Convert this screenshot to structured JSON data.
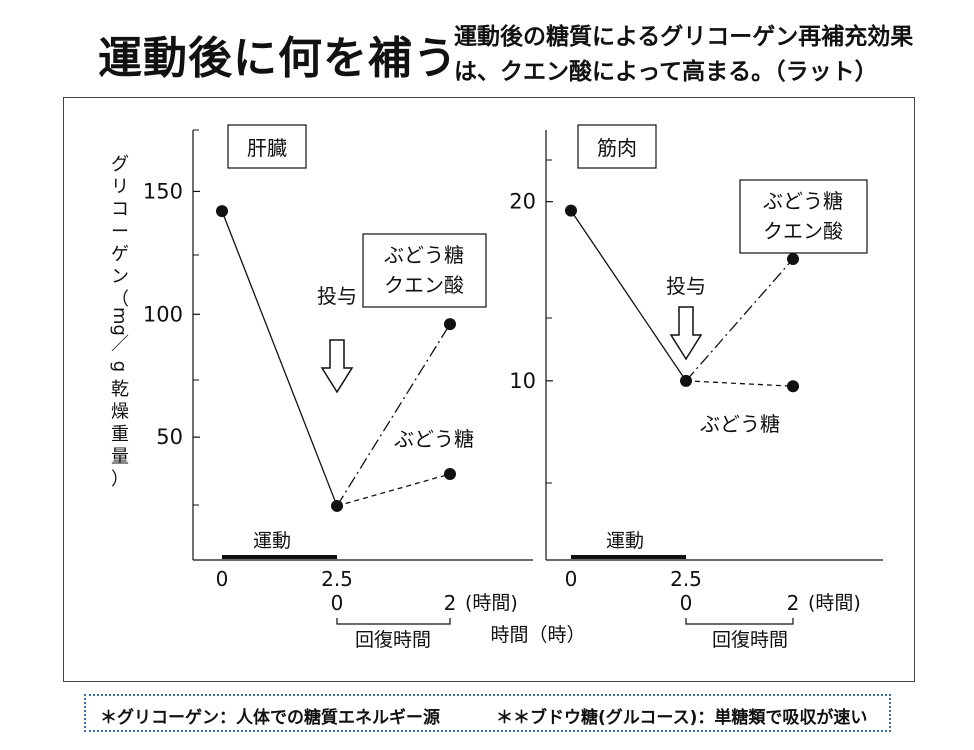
{
  "title": "運動後に何を補う",
  "subtitle": [
    "運動後の糖質によるグリコーゲン再補充効果",
    "は、クエン酸によって高まる。（ラット）"
  ],
  "colors": {
    "line": "#111111",
    "footnote_border": "#3b6ea8"
  },
  "chart_data": [
    {
      "type": "line",
      "panel_label": "肝臓",
      "ylabel": [
        "グ",
        "リ",
        "コ",
        "ー",
        "ゲ",
        "ン",
        "（",
        "mg",
        "／",
        "g",
        "乾",
        "燥",
        "重",
        "量",
        "）"
      ],
      "yticks": [
        50,
        100,
        150
      ],
      "ylim": [
        0,
        175
      ],
      "x_main_ticks": [
        "0",
        "2.5"
      ],
      "x_recovery_ticks": [
        "0",
        "2"
      ],
      "x_unit": "(時間)",
      "exercise_label": "運動",
      "recovery_label": "回復時間",
      "axis_caption": "時間（時）",
      "dose_label": "投与",
      "series": [
        {
          "label": [
            "ぶどう糖",
            "クエン酸"
          ],
          "style": "dash-dot",
          "points": [
            [
              0,
              142
            ],
            [
              2.5,
              22
            ],
            [
              4.5,
              96
            ]
          ]
        },
        {
          "label": [
            "ぶどう糖"
          ],
          "style": "dashed",
          "points": [
            [
              2.5,
              22
            ],
            [
              4.5,
              35
            ]
          ]
        }
      ]
    },
    {
      "type": "line",
      "panel_label": "筋肉",
      "yticks": [
        10,
        20
      ],
      "ylim": [
        0,
        24
      ],
      "x_main_ticks": [
        "0",
        "2.5"
      ],
      "x_recovery_ticks": [
        "0",
        "2"
      ],
      "x_unit": "(時間)",
      "exercise_label": "運動",
      "recovery_label": "回復時間",
      "dose_label": "投与",
      "series": [
        {
          "label": [
            "ぶどう糖",
            "クエン酸"
          ],
          "style": "dash-dot",
          "points": [
            [
              0,
              19.5
            ],
            [
              2.5,
              10
            ],
            [
              4.5,
              16.8
            ]
          ]
        },
        {
          "label": [
            "ぶどう糖"
          ],
          "style": "dashed",
          "points": [
            [
              2.5,
              10
            ],
            [
              4.5,
              9.7
            ]
          ]
        }
      ]
    }
  ],
  "footnote": {
    "left": "＊グリコーゲン：人体での糖質エネルギー源",
    "right": "＊＊ブドウ糖(グルコース)：単糖類で吸収が速い"
  }
}
